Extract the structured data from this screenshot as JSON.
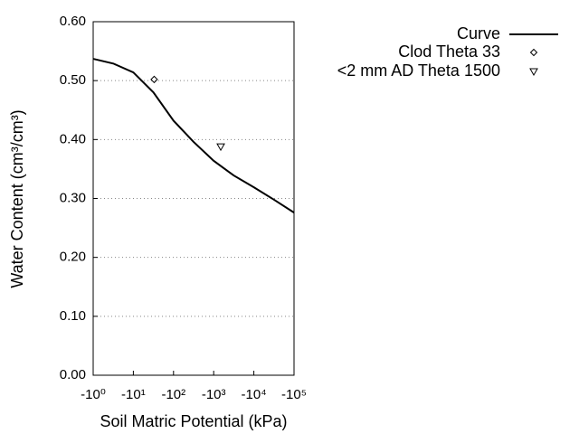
{
  "chart_data": {
    "type": "line",
    "xlabel": "Soil Matric Potential (kPa)",
    "ylabel": "Water Content (cm³/cm³)",
    "xscale": "log",
    "xlim": [
      -1,
      -100000
    ],
    "ylim": [
      0,
      0.6
    ],
    "xticks": [
      {
        "value": -1,
        "label": "-10⁰"
      },
      {
        "value": -10,
        "label": "-10¹"
      },
      {
        "value": -100,
        "label": "-10²"
      },
      {
        "value": -1000,
        "label": "-10³"
      },
      {
        "value": -10000,
        "label": "-10⁴"
      },
      {
        "value": -100000,
        "label": "-10⁵"
      }
    ],
    "yticks": [
      {
        "value": 0,
        "label": "0.00"
      },
      {
        "value": 0.1,
        "label": "0.10"
      },
      {
        "value": 0.2,
        "label": "0.20"
      },
      {
        "value": 0.3,
        "label": "0.30"
      },
      {
        "value": 0.4,
        "label": "0.40"
      },
      {
        "value": 0.5,
        "label": "0.50"
      },
      {
        "value": 0.6,
        "label": "0.60"
      }
    ],
    "grid": true,
    "series": [
      {
        "name": "Curve",
        "color": "#000000",
        "style": "line",
        "x": [
          -1,
          -3.16,
          -10,
          -31.6,
          -100,
          -316,
          -1000,
          -3160,
          -10000,
          -31600,
          -100000
        ],
        "values": [
          0.537,
          0.529,
          0.514,
          0.48,
          0.432,
          0.396,
          0.364,
          0.339,
          0.319,
          0.298,
          0.276
        ]
      },
      {
        "name": "Clod Theta 33",
        "color": "#000000",
        "style": "marker",
        "marker": "diamond",
        "x": [
          -33
        ],
        "values": [
          0.502
        ]
      },
      {
        "name": "<2 mm AD Theta 1500",
        "color": "#000000",
        "style": "marker",
        "marker": "triangle-down",
        "x": [
          -1500
        ],
        "values": [
          0.388
        ]
      }
    ]
  }
}
